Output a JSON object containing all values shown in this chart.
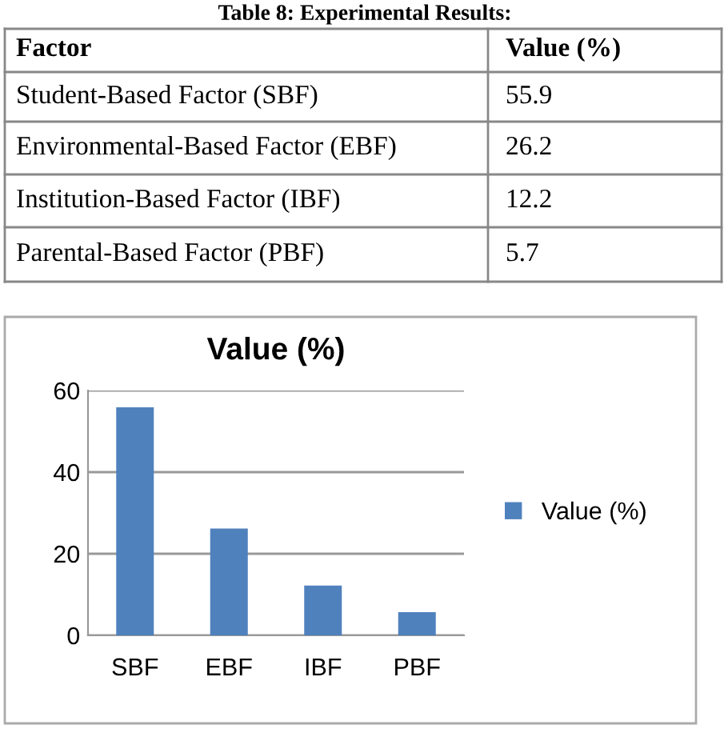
{
  "chart_data": {
    "type": "bar",
    "title": "Value (%)",
    "categories": [
      "SBF",
      "EBF",
      "IBF",
      "PBF"
    ],
    "series": [
      {
        "name": "Value (%)",
        "color": "#4f81bd",
        "values": [
          55.9,
          26.2,
          12.2,
          5.7
        ]
      }
    ],
    "ylim": [
      0,
      60
    ],
    "yticks": [
      0,
      20,
      40,
      60
    ],
    "grid": "y",
    "legend": "right",
    "annotations": [
      "Table 8: Experimental Results:",
      "Factor",
      "Value (%)",
      "Student-Based Factor (SBF)",
      "Environmental-Based Factor (EBF)",
      "Institution-Based Factor (IBF)",
      "Parental-Based Factor (PBF)",
      "55.9",
      "26.2",
      "12.2",
      "5.7"
    ]
  }
}
